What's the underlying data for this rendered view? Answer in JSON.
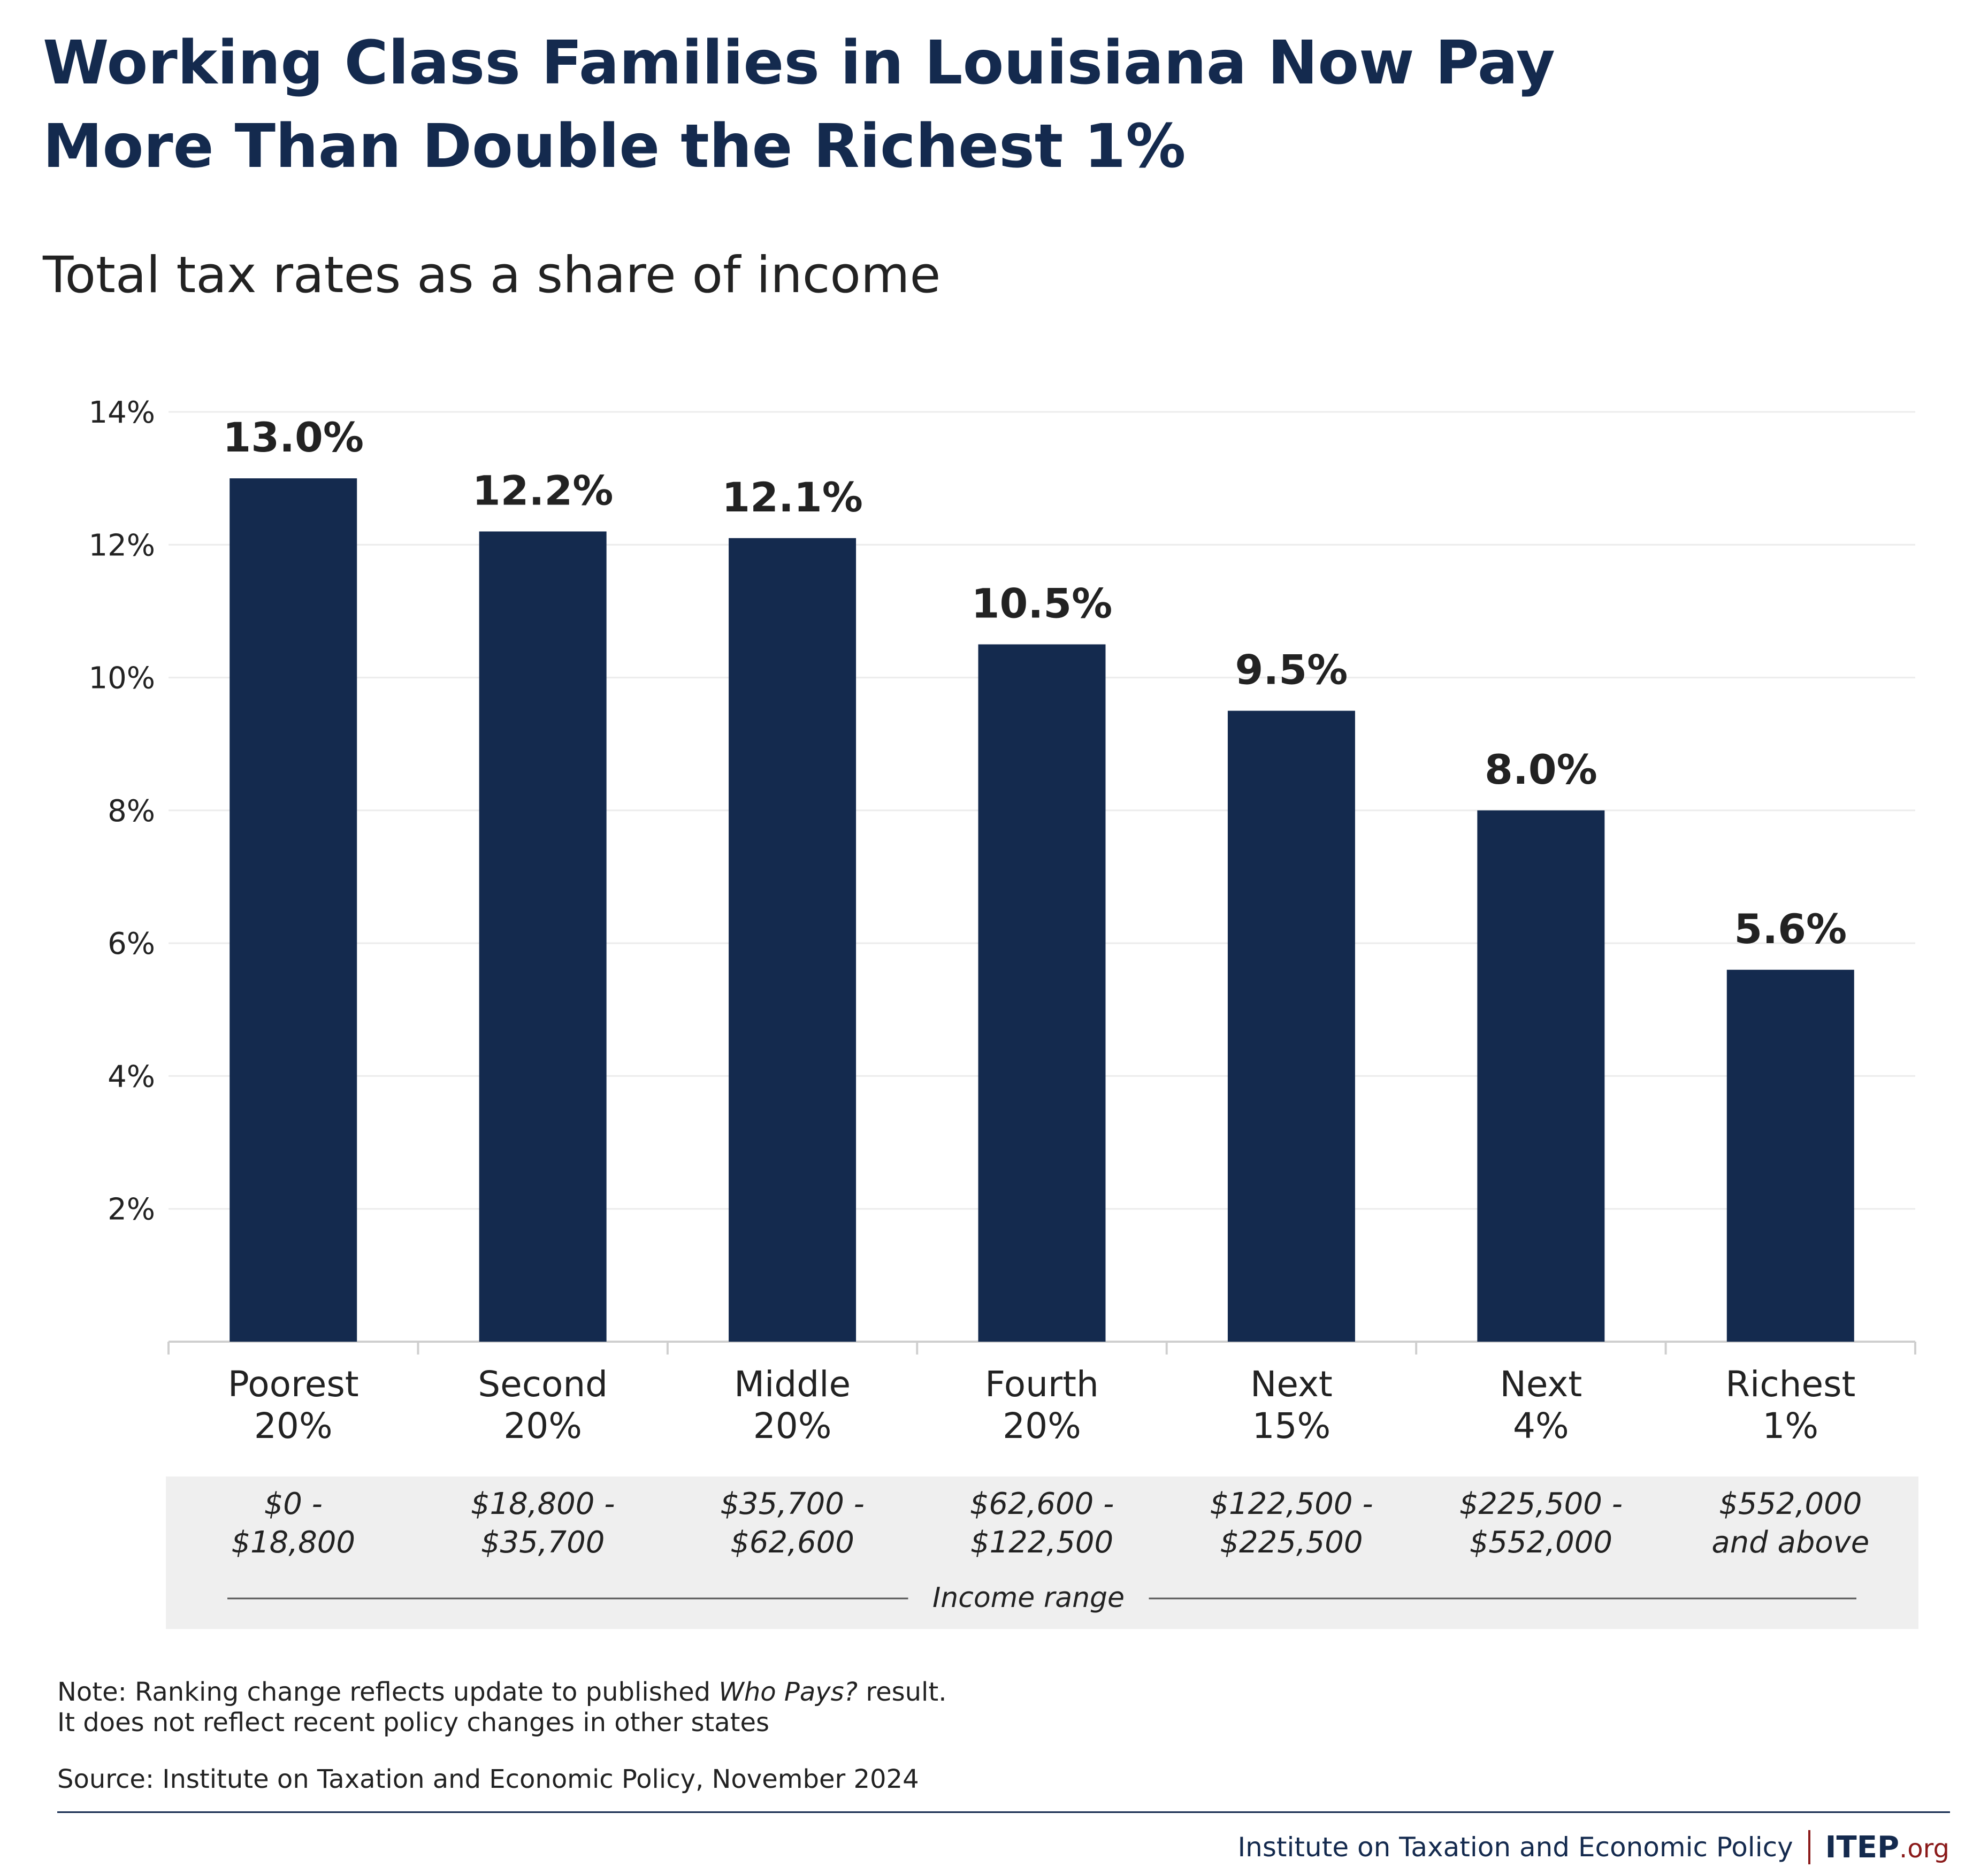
{
  "title_lines": [
    "Working Class Families in Louisiana Now Pay",
    "More Than Double the Richest 1%"
  ],
  "subtitle": "Total tax rates as a share of income",
  "chart_data": {
    "type": "bar",
    "title": "Working Class Families in Louisiana Now Pay More Than Double the Richest 1%",
    "subtitle": "Total tax rates as a share of income",
    "categories": [
      [
        "Poorest",
        "20%"
      ],
      [
        "Second",
        "20%"
      ],
      [
        "Middle",
        "20%"
      ],
      [
        "Fourth",
        "20%"
      ],
      [
        "Next",
        "15%"
      ],
      [
        "Next",
        "4%"
      ],
      [
        "Richest",
        "1%"
      ]
    ],
    "values": [
      13.0,
      12.2,
      12.1,
      10.5,
      9.5,
      8.0,
      5.6
    ],
    "value_labels": [
      "13.0%",
      "12.2%",
      "12.1%",
      "10.5%",
      "9.5%",
      "8.0%",
      "5.6%"
    ],
    "income_ranges": [
      [
        "$0 -",
        "$18,800"
      ],
      [
        "$18,800 -",
        "$35,700"
      ],
      [
        "$35,700 -",
        "$62,600"
      ],
      [
        "$62,600 -",
        "$122,500"
      ],
      [
        "$122,500 -",
        "$225,500"
      ],
      [
        "$225,500 -",
        "$552,000"
      ],
      [
        "$552,000",
        "and above"
      ]
    ],
    "income_range_label": "Income range",
    "yticks": [
      2,
      4,
      6,
      8,
      10,
      12,
      14
    ],
    "ytick_labels": [
      "2%",
      "4%",
      "6%",
      "8%",
      "10%",
      "12%",
      "14%"
    ],
    "ylim": [
      0,
      14
    ],
    "grid": true,
    "bar_color": "#142a4e"
  },
  "note": {
    "prefix": "Note: Ranking change reflects update to published ",
    "italic": "Who Pays?",
    "suffix": " result.",
    "line2": "It does not reflect recent policy changes in other states"
  },
  "source": "Source: Institute on Taxation and Economic Policy, November 2024",
  "footer": {
    "org_name": "Institute on Taxation and Economic Policy",
    "logo_main": "ITEP",
    "logo_suffix": ".org"
  },
  "colors": {
    "title": "#142a4e",
    "bar": "#142a4e",
    "band": "#efefef",
    "accent": "#8b1a1a"
  }
}
